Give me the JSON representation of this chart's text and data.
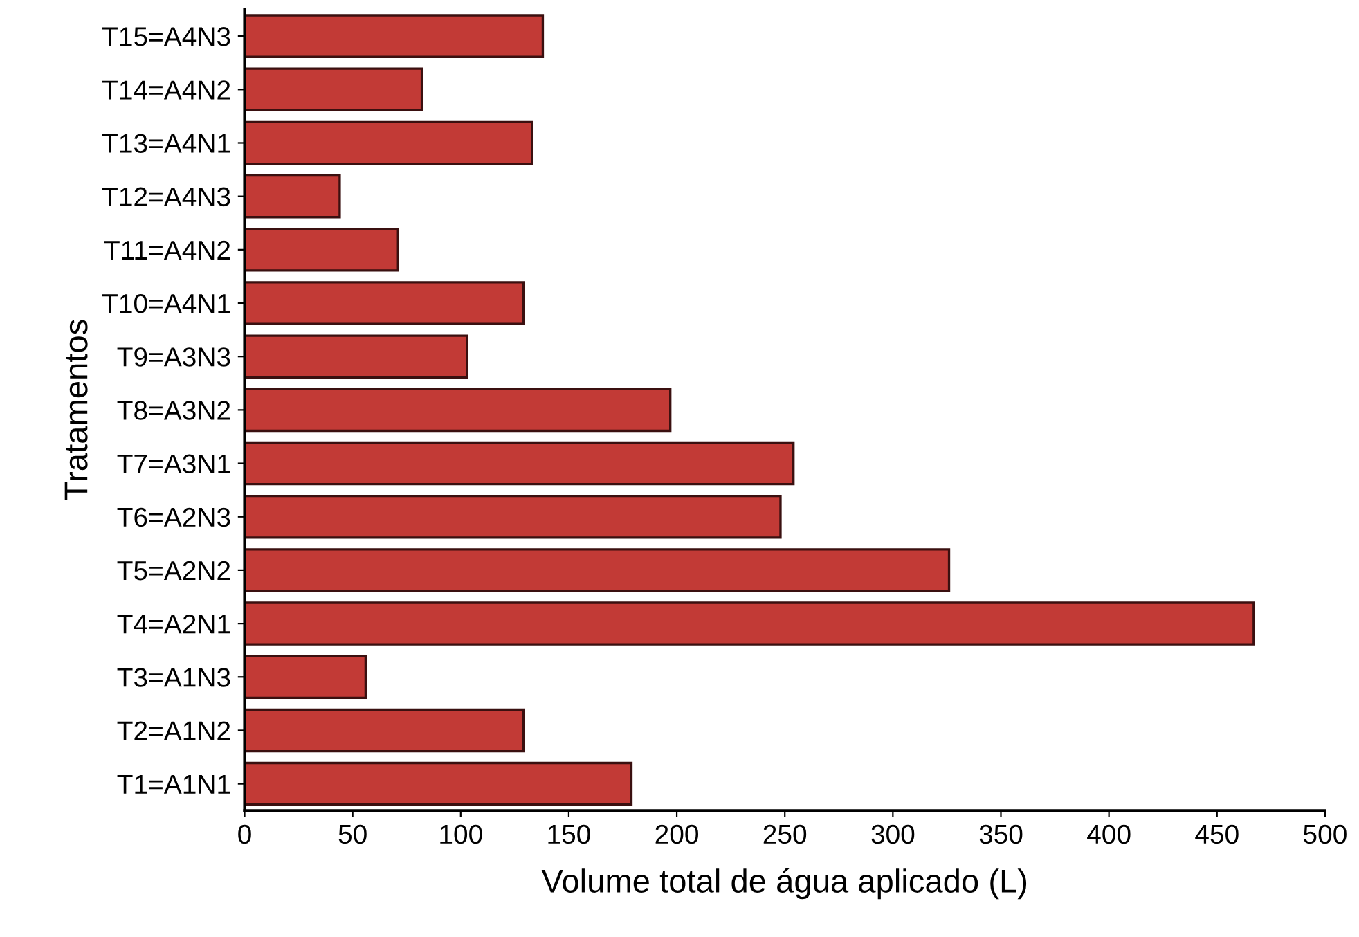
{
  "chart_data": {
    "type": "bar",
    "orientation": "horizontal",
    "xlabel": "Volume total de água aplicado (L)",
    "ylabel": "Tratamentos",
    "categories": [
      "T15=A4N3",
      "T14=A4N2",
      "T13=A4N1",
      "T12=A4N3",
      "T11=A4N2",
      "T10=A4N1",
      "T9=A3N3",
      "T8=A3N2",
      "T7=A3N1",
      "T6=A2N3",
      "T5=A2N2",
      "T4=A2N1",
      "T3=A1N3",
      "T2=A1N2",
      "T1=A1N1"
    ],
    "values": [
      138,
      82,
      133,
      44,
      71,
      129,
      103,
      197,
      254,
      248,
      326,
      467,
      56,
      129,
      179
    ],
    "color": "#c23a36",
    "xlim": [
      0,
      500
    ],
    "xticks": [
      0,
      50,
      100,
      150,
      200,
      250,
      300,
      350,
      400,
      450,
      500
    ],
    "grid": false
  }
}
